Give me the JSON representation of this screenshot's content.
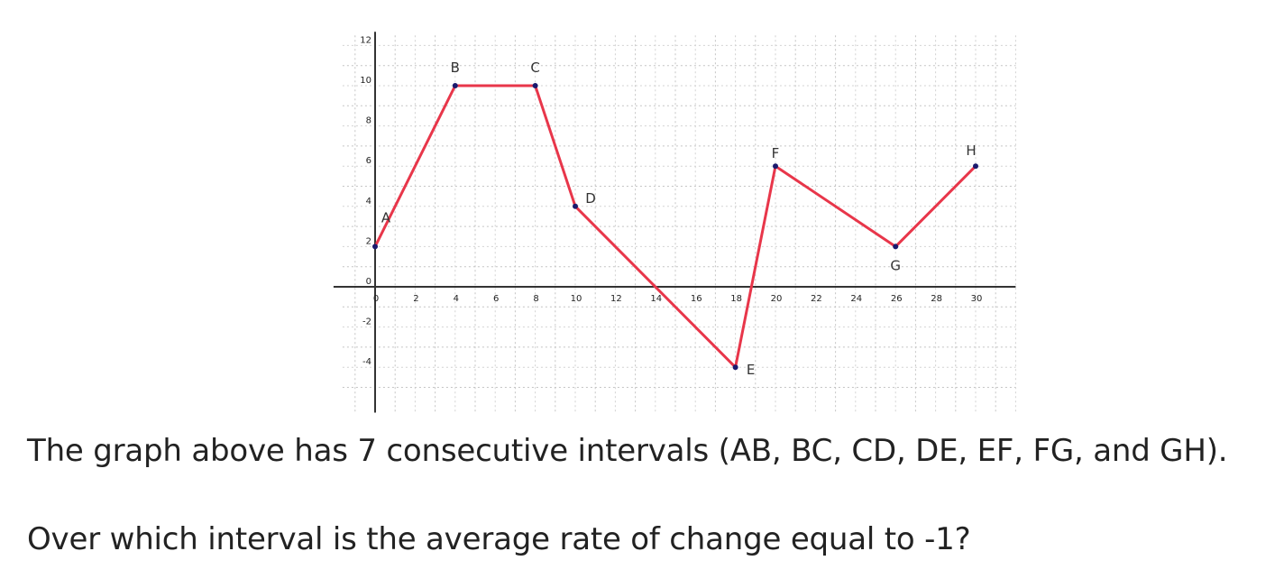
{
  "chart_data": {
    "type": "line",
    "x_tick_labels": [
      "0",
      "2",
      "4",
      "6",
      "8",
      "10",
      "12",
      "14",
      "16",
      "18",
      "20",
      "22",
      "24",
      "26",
      "28",
      "30"
    ],
    "y_tick_labels": [
      "-4",
      "-2",
      "0",
      "2",
      "4",
      "6",
      "8",
      "10",
      "12"
    ],
    "xlim": [
      -0.5,
      32
    ],
    "ylim": [
      -5,
      12.5
    ],
    "grid": true,
    "line_color": "#e8364a",
    "point_color": "#1a1a6e",
    "points": [
      {
        "label": "A",
        "x": 0,
        "y": 2
      },
      {
        "label": "B",
        "x": 4,
        "y": 10
      },
      {
        "label": "C",
        "x": 8,
        "y": 10
      },
      {
        "label": "D",
        "x": 10,
        "y": 4
      },
      {
        "label": "E",
        "x": 18,
        "y": -4
      },
      {
        "label": "F",
        "x": 20,
        "y": 6
      },
      {
        "label": "G",
        "x": 26,
        "y": 2
      },
      {
        "label": "H",
        "x": 30,
        "y": 6
      }
    ]
  },
  "question": {
    "line1": "The graph above has 7 consecutive intervals (AB, BC, CD, DE, EF, FG, and GH).",
    "line2": "Over which interval is the average rate of change equal to -1?"
  }
}
